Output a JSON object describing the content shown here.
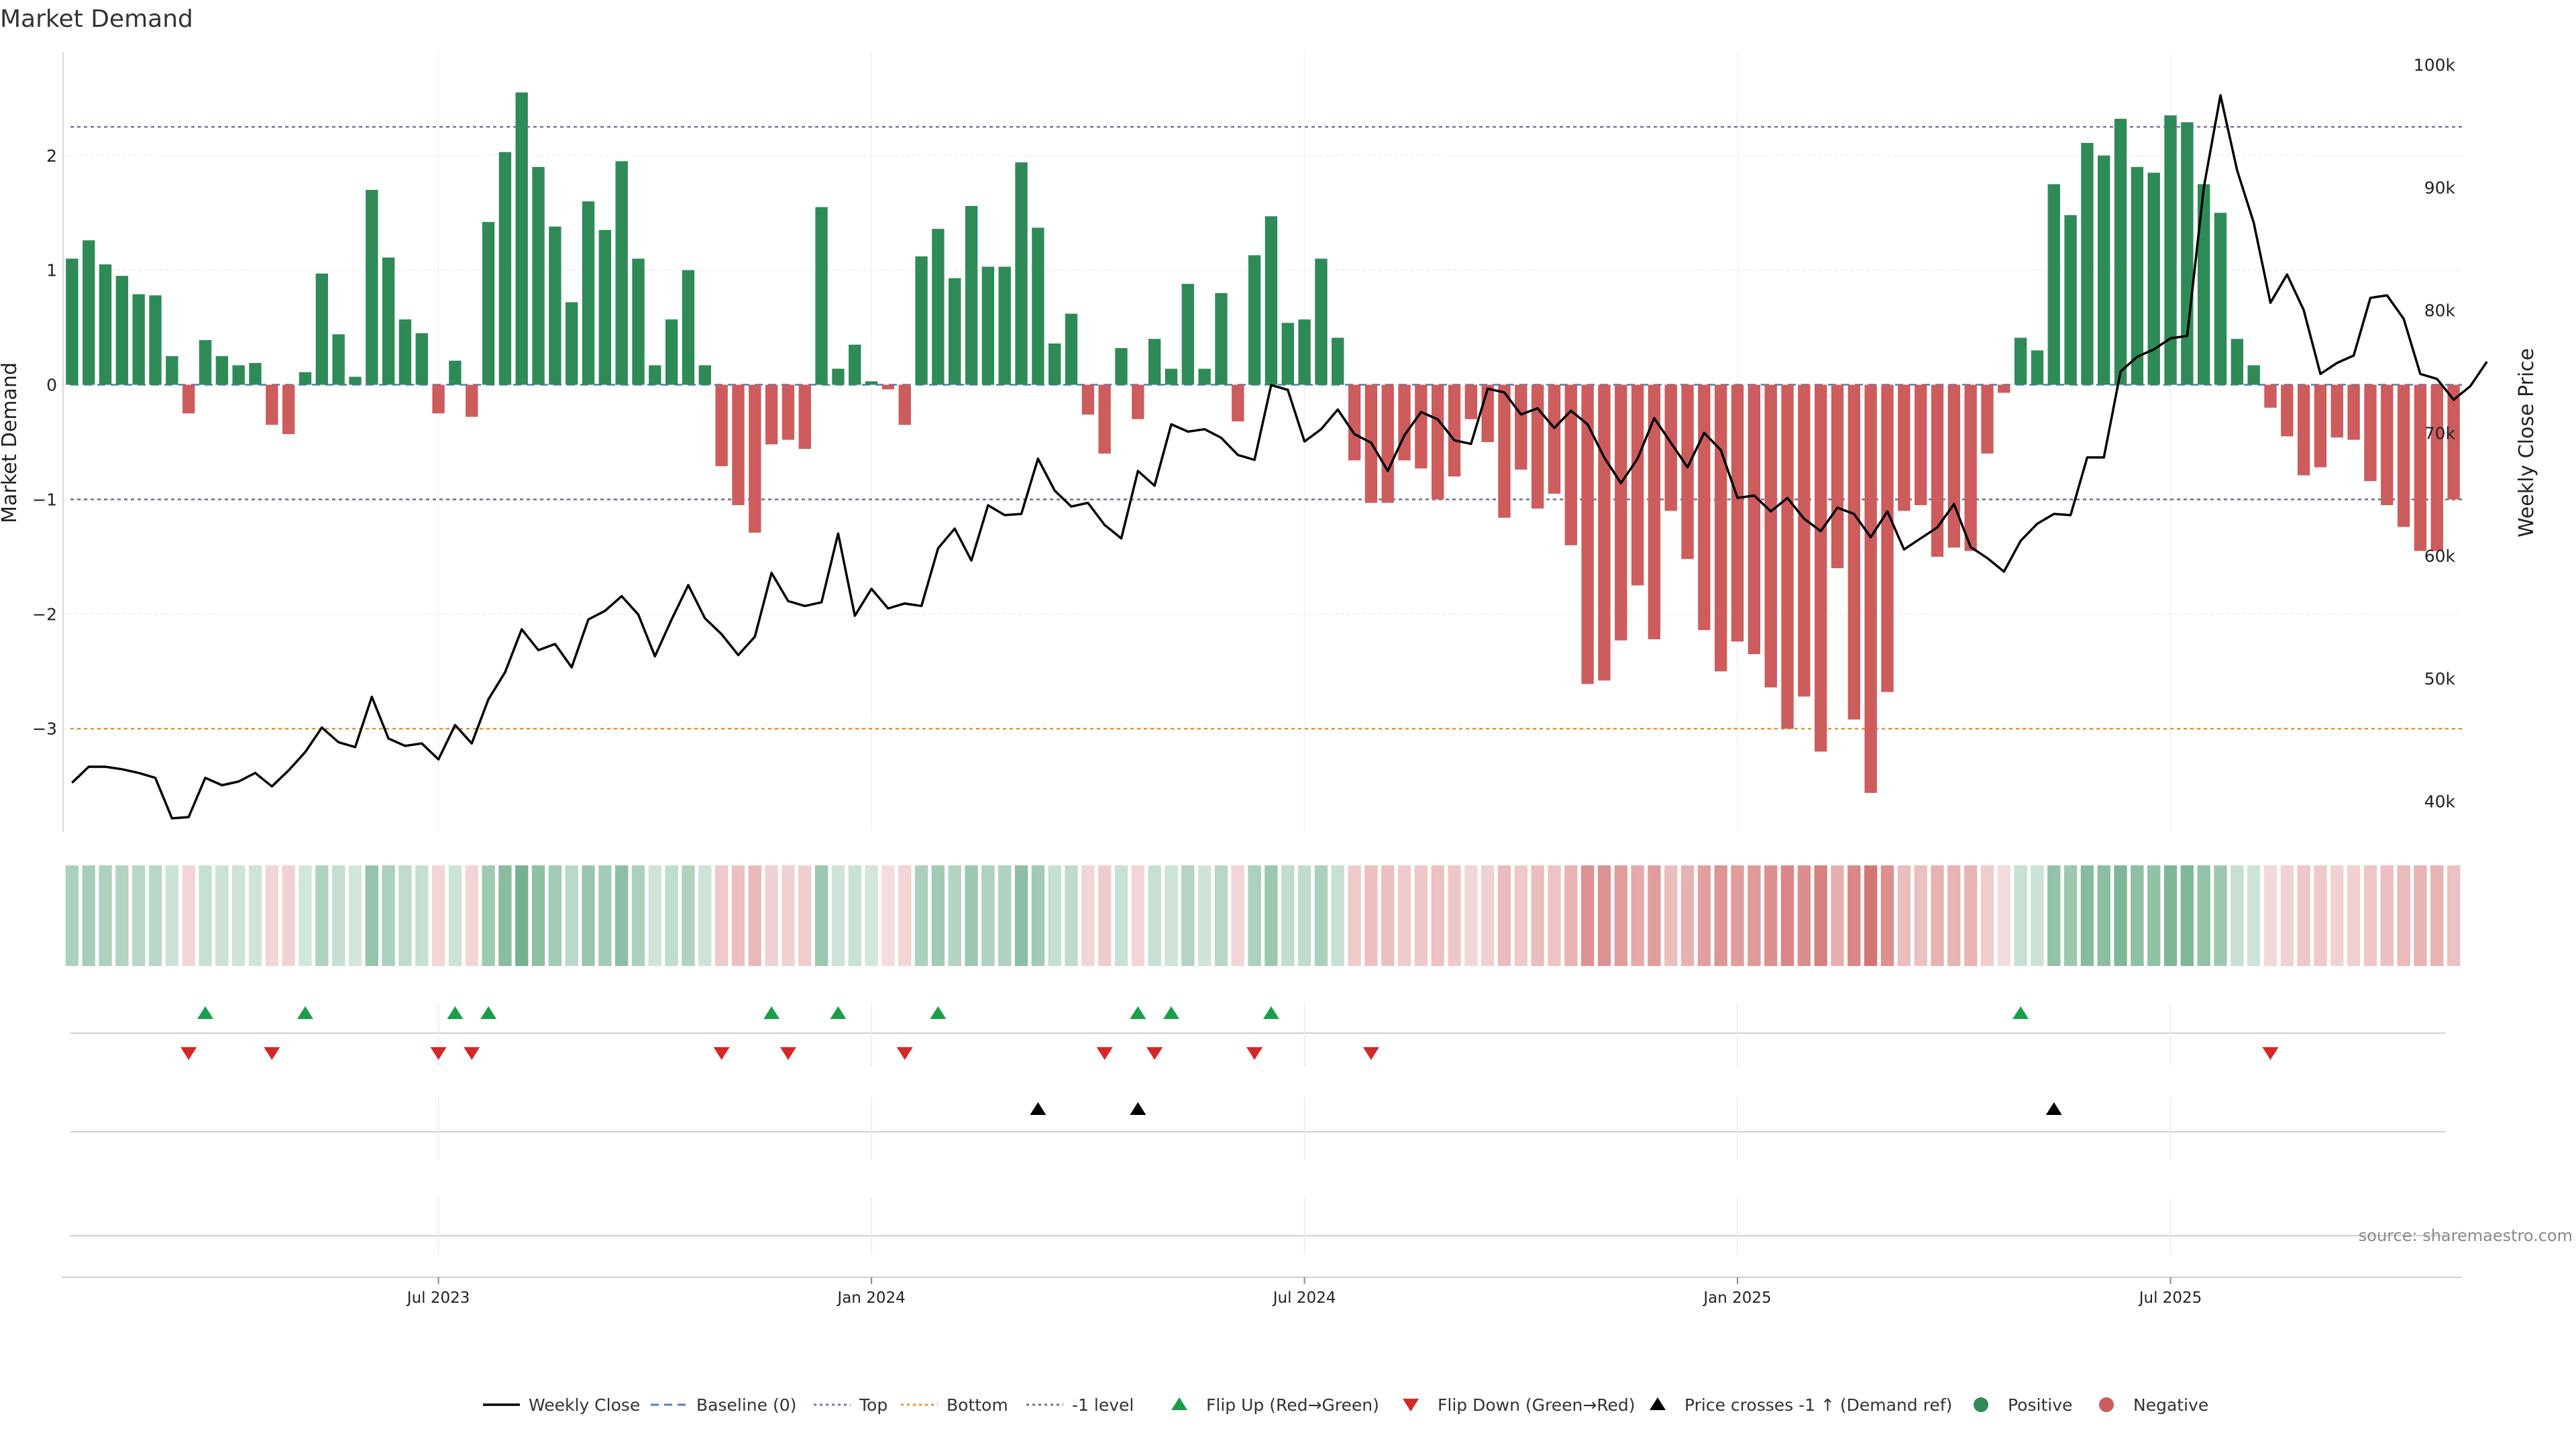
{
  "title": "Market Demand",
  "source": "source: sharemaestro.com",
  "colors": {
    "positive": "#2e8b57",
    "negative": "#cd5c5c",
    "top_line": "#7b6fb0",
    "bottom_line": "#e8913a",
    "minus1_line": "#6c6c9a",
    "baseline": "#4a7fc1",
    "price": "#000000",
    "flip_up": "#1a9e49",
    "flip_down": "#d62728",
    "cross": "#000000"
  },
  "chart_data": {
    "type": "bar",
    "title": "Market Demand",
    "xlabel": "",
    "ylabel": "Market Demand",
    "y2label": "Weekly Close Price",
    "ylim": [
      -3.9,
      2.9
    ],
    "y2lim": [
      37500,
      101000
    ],
    "yticks": [
      2,
      1,
      0,
      -1,
      -2,
      -3
    ],
    "yticklabels": [
      "2",
      "1",
      "0",
      "−1",
      "−2",
      "−3"
    ],
    "y2ticks": [
      100000,
      90000,
      80000,
      70000,
      60000,
      50000,
      40000
    ],
    "y2ticklabels": [
      "100k",
      "90k",
      "80k",
      "70k",
      "60k",
      "50k",
      "40k"
    ],
    "xticks": [
      {
        "label": "Jul 2023",
        "week": 22
      },
      {
        "label": "Jan 2024",
        "week": 48
      },
      {
        "label": "Jul 2024",
        "week": 74
      },
      {
        "label": "Jan 2025",
        "week": 100
      },
      {
        "label": "Jul 2025",
        "week": 126
      }
    ],
    "reference_lines": {
      "top": 2.25,
      "bottom": -3.0,
      "minus1": -1.0,
      "baseline": 0
    },
    "demand": [
      1.1,
      1.26,
      1.05,
      0.95,
      0.79,
      0.78,
      0.25,
      -0.25,
      0.39,
      0.25,
      0.17,
      0.19,
      -0.35,
      -0.43,
      0.11,
      0.97,
      0.44,
      0.07,
      1.7,
      1.11,
      0.57,
      0.45,
      -0.25,
      0.21,
      -0.28,
      1.42,
      2.03,
      2.55,
      1.9,
      1.38,
      0.72,
      1.6,
      1.35,
      1.95,
      1.1,
      0.17,
      0.57,
      1.0,
      0.17,
      -0.71,
      -1.05,
      -1.29,
      -0.52,
      -0.48,
      -0.56,
      1.55,
      0.14,
      0.35,
      0.03,
      -0.04,
      -0.35,
      1.12,
      1.36,
      0.93,
      1.56,
      1.03,
      1.03,
      1.94,
      1.37,
      0.36,
      0.62,
      -0.26,
      -0.6,
      0.32,
      -0.3,
      0.4,
      0.14,
      0.88,
      0.14,
      0.8,
      -0.32,
      1.13,
      1.47,
      0.54,
      0.57,
      1.1,
      0.41,
      -0.66,
      -1.03,
      -1.03,
      -0.66,
      -0.73,
      -1.0,
      -0.8,
      -0.3,
      -0.5,
      -1.16,
      -0.74,
      -1.08,
      -0.95,
      -1.4,
      -2.61,
      -2.58,
      -2.23,
      -1.75,
      -2.22,
      -1.1,
      -1.52,
      -2.14,
      -2.5,
      -2.24,
      -2.35,
      -2.64,
      -3.0,
      -2.72,
      -3.2,
      -1.6,
      -2.92,
      -3.56,
      -2.68,
      -1.1,
      -1.05,
      -1.5,
      -1.42,
      -1.45,
      -0.6,
      -0.07,
      0.41,
      0.3,
      1.75,
      1.48,
      2.11,
      2.0,
      2.32,
      1.9,
      1.85,
      2.35,
      2.29,
      1.75,
      1.5,
      0.4,
      0.17,
      -0.2,
      -0.45,
      -0.79,
      -0.72,
      -0.46,
      -0.48,
      -0.84,
      -1.05,
      -1.24,
      -1.45,
      -1.45,
      -1.0
    ],
    "weekly_close": [
      41500,
      42800,
      42800,
      42600,
      42300,
      41900,
      38600,
      38700,
      41900,
      41300,
      41600,
      42300,
      41200,
      42500,
      44000,
      46000,
      44800,
      44400,
      48500,
      45100,
      44500,
      44700,
      43400,
      46200,
      44700,
      48300,
      50500,
      54000,
      52300,
      52800,
      50900,
      54800,
      55500,
      56700,
      55200,
      51800,
      54800,
      57600,
      54900,
      53600,
      51900,
      53400,
      58600,
      56300,
      55900,
      56200,
      61800,
      55100,
      57300,
      55700,
      56100,
      55900,
      60600,
      62200,
      59600,
      64100,
      63300,
      63400,
      67900,
      65300,
      64000,
      64300,
      62500,
      61400,
      66900,
      65700,
      70700,
      70100,
      70300,
      69600,
      68200,
      67800,
      73900,
      73500,
      69300,
      70300,
      71900,
      69900,
      69200,
      66900,
      69800,
      71700,
      71100,
      69400,
      69100,
      73600,
      73300,
      71500,
      72000,
      70400,
      71800,
      70700,
      68000,
      65900,
      67900,
      71200,
      69200,
      67200,
      70000,
      68600,
      64700,
      64900,
      63600,
      64700,
      63000,
      62000,
      63900,
      63400,
      61500,
      63600,
      60500,
      61400,
      62300,
      64200,
      60700,
      59800,
      58700,
      61200,
      62600,
      63400,
      63300,
      68000,
      68000,
      75000,
      76200,
      76800,
      77700,
      77900,
      90000,
      97500,
      91400,
      87100,
      80600,
      82900,
      80000,
      74800,
      75700,
      76300,
      81000,
      81200,
      79300,
      74800,
      74400,
      72700,
      73800,
      75800
    ],
    "flip_up_weeks": [
      8,
      14,
      23,
      25,
      42,
      46,
      52,
      64,
      66,
      72,
      117
    ],
    "flip_down_weeks": [
      7,
      12,
      22,
      24,
      39,
      43,
      50,
      62,
      65,
      71,
      78,
      132
    ],
    "price_cross_weeks": [
      58,
      64,
      119
    ]
  },
  "legend": [
    {
      "key": "weekly_close",
      "label": "Weekly Close"
    },
    {
      "key": "baseline",
      "label": "Baseline (0)"
    },
    {
      "key": "top",
      "label": "Top"
    },
    {
      "key": "bottom",
      "label": "Bottom"
    },
    {
      "key": "minus1",
      "label": "-1 level"
    },
    {
      "key": "flip_up",
      "label": "Flip Up (Red→Green)"
    },
    {
      "key": "flip_down",
      "label": "Flip Down (Green→Red)"
    },
    {
      "key": "cross",
      "label": "Price crosses -1 ↑ (Demand ref)"
    },
    {
      "key": "positive",
      "label": "Positive"
    },
    {
      "key": "negative",
      "label": "Negative"
    }
  ]
}
